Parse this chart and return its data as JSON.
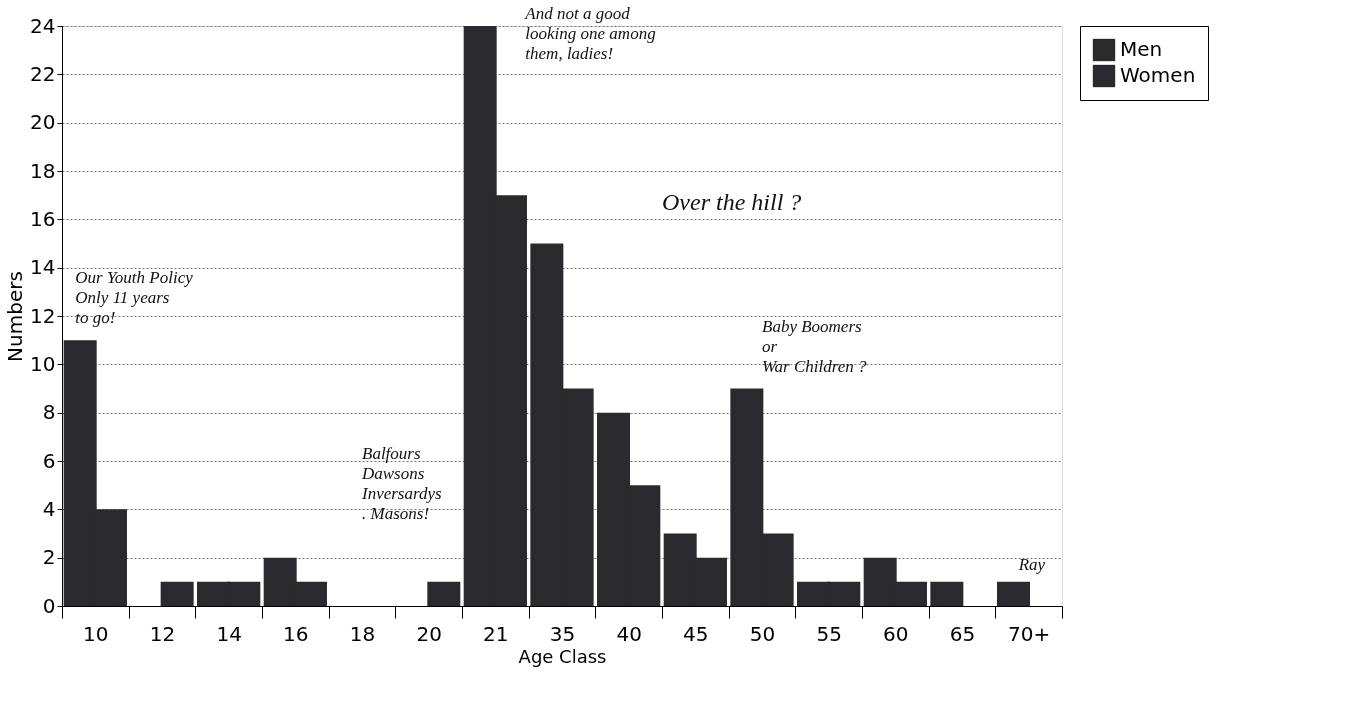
{
  "chart_data": {
    "type": "bar",
    "xlabel": "Age Class",
    "ylabel": "Numbers",
    "categories": [
      "10",
      "12",
      "14",
      "16",
      "18",
      "20",
      "21",
      "35",
      "40",
      "45",
      "50",
      "55",
      "60",
      "65",
      "70+"
    ],
    "series": [
      {
        "name": "Men",
        "color": "#2a2a2e",
        "values": [
          11,
          0,
          1,
          2,
          0,
          0,
          24,
          15,
          8,
          3,
          9,
          1,
          2,
          1,
          1
        ]
      },
      {
        "name": "Women",
        "color": "#2a2a2e",
        "values": [
          4,
          1,
          1,
          1,
          0,
          1,
          17,
          9,
          5,
          2,
          3,
          1,
          1,
          0,
          0
        ]
      }
    ],
    "ylim": [
      0,
      24
    ],
    "yticks": [
      0,
      2,
      4,
      6,
      8,
      10,
      12,
      14,
      16,
      18,
      20,
      22,
      24
    ],
    "grid": "y",
    "legend": "right",
    "annotations": [
      {
        "text": "Our Youth Policy\nOnly 11 years\nto go!",
        "x": "10",
        "y": 11
      },
      "Balfours\nDawsons\nInversardys\n. Masons!",
      {
        "text": "And not a good\nlooking one among\nthem, ladies!",
        "x": "21",
        "y": 24
      },
      "Over the hill ?",
      {
        "text": "Baby Boomers\nor\nWar Children ?",
        "x": "50",
        "y": 9
      },
      {
        "text": "Ray",
        "x": "70+",
        "y": 1
      }
    ]
  }
}
